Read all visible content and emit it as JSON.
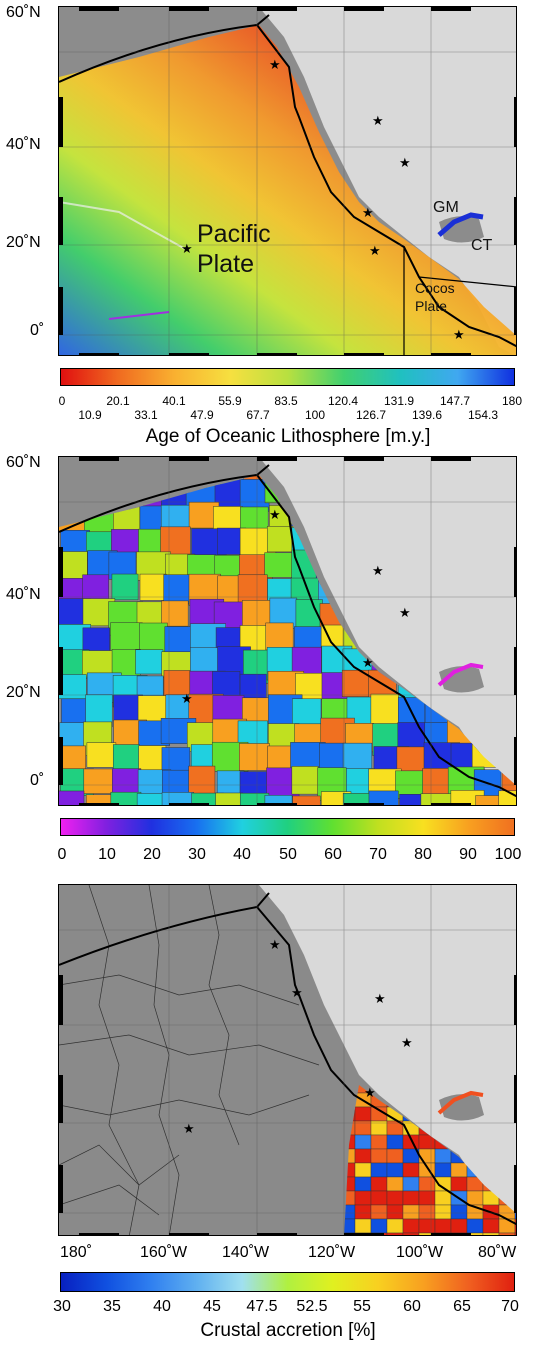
{
  "panel1": {
    "lat_labels": [
      "60˚N",
      "40˚N",
      "20˚N",
      "0˚"
    ],
    "region_labels": {
      "pacific": "Pacific",
      "plate": "Plate",
      "gm": "GM",
      "ct": "CT",
      "cocos": "Cocos",
      "cocos_plate": "Plate"
    },
    "colorbar": {
      "top_ticks": [
        "0",
        "20.1",
        "40.1",
        "55.9",
        "83.5",
        "120.4",
        "131.9",
        "147.7",
        "180"
      ],
      "bottom_ticks": [
        "10.9",
        "33.1",
        "47.9",
        "67.7",
        "100",
        "126.7",
        "139.6",
        "154.3"
      ],
      "title": "Age of Oceanic Lithosphere [m.y.]"
    }
  },
  "panel2": {
    "lat_labels": [
      "60˚N",
      "40˚N",
      "20˚N",
      "0˚"
    ],
    "colorbar": {
      "ticks": [
        "0",
        "10",
        "20",
        "30",
        "40",
        "50",
        "60",
        "70",
        "80",
        "90",
        "100"
      ]
    }
  },
  "panel3": {
    "lon_labels": [
      "180˚",
      "160˚W",
      "140˚W",
      "120˚W",
      "100˚W",
      "80˚W"
    ],
    "colorbar": {
      "ticks": [
        "30",
        "35",
        "40",
        "45",
        "47.5",
        "52.5",
        "55",
        "60",
        "65",
        "70"
      ],
      "title": "Crustal accretion [%]"
    }
  },
  "colors": {
    "land": "#d9d9d9",
    "ocean_shade": "#8a8a8a",
    "coast": "#000000"
  }
}
